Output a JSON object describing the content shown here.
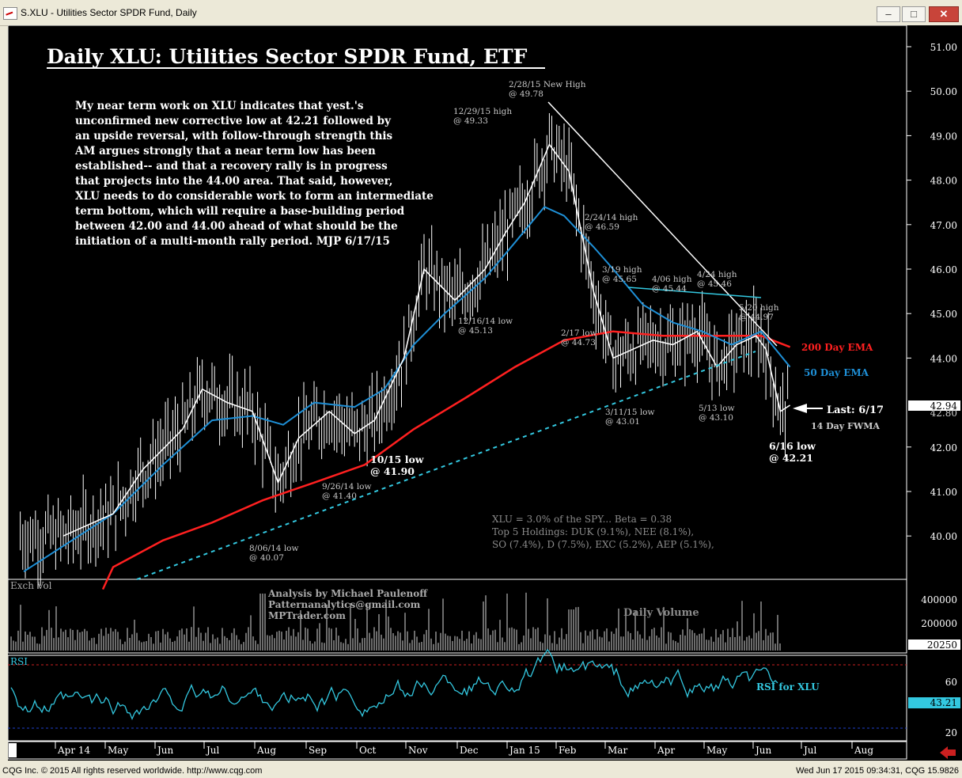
{
  "window": {
    "title": "S.XLU - Utilities Sector SPDR Fund, Daily",
    "minimize_icon": "minimize-icon",
    "restore_icon": "restore-icon",
    "close_icon": "close-icon",
    "minimize_label": "–",
    "restore_label": "□",
    "close_label": "✕"
  },
  "status": {
    "left": "CQG Inc. © 2015 All rights reserved worldwide. http://www.cqg.com",
    "right": "Wed Jun 17 2015 09:34:31, CQG 15.9826"
  },
  "chart": {
    "headline": "Daily XLU:  Utilities Sector SPDR Fund, ETF",
    "commentary": [
      "My near term work on XLU indicates that yest.'s",
      "unconfirmed new corrective low at 42.21 followed by",
      "an upside reversal, with follow-through strength this",
      "AM argues strongly that a near term low has been",
      "established-- and that a recovery rally is in progress",
      "that projects into the 44.00 area. That said, however,",
      "XLU needs to do considerable work to form an intermediate",
      "term bottom, which will require a base-building period",
      "between 42.00 and 44.00 ahead of what should be the",
      "initiation of a multi-month rally period.  MJP 6/17/15"
    ],
    "annotations": [
      {
        "id": "a1",
        "text": [
          "2/28/15 New High",
          "@ 49.78"
        ]
      },
      {
        "id": "a2",
        "text": [
          "12/29/15 high",
          "@ 49.33"
        ]
      },
      {
        "id": "a3",
        "text": [
          "2/24/14 high",
          "@ 46.59"
        ]
      },
      {
        "id": "a4",
        "text": [
          "3/19 high",
          "@ 45.65"
        ]
      },
      {
        "id": "a5",
        "text": [
          "4/06 high",
          "@ 45.44"
        ]
      },
      {
        "id": "a6",
        "text": [
          "4/24 high",
          "@ 45.46"
        ]
      },
      {
        "id": "a7",
        "text": [
          "5/20 high",
          "@ 44.97"
        ]
      },
      {
        "id": "a8",
        "text": [
          "12/16/14 low",
          "@ 45.13"
        ]
      },
      {
        "id": "a9",
        "text": [
          "2/17 low",
          "@ 44.73"
        ]
      },
      {
        "id": "a10",
        "text": [
          "3/11/15 low",
          "@ 43.01"
        ]
      },
      {
        "id": "a11",
        "text": [
          "5/13 low",
          "@ 43.10"
        ]
      },
      {
        "id": "a12",
        "text": [
          "10/15 low",
          "@ 41.90"
        ]
      },
      {
        "id": "a13",
        "text": [
          "9/26/14 low",
          "@ 41.40"
        ]
      },
      {
        "id": "a14",
        "text": [
          "8/06/14 low",
          "@ 40.07"
        ]
      },
      {
        "id": "a15",
        "text": [
          "6/16 low",
          "@ 42.21"
        ]
      }
    ],
    "legend_200": "200 Day EMA",
    "legend_50": "50 Day EMA",
    "last_label": "Last: 6/17",
    "fwma_label": "14 Day FWMA",
    "stats_lines": [
      "XLU = 3.0% of the SPY... Beta = 0.38",
      "Top 5 Holdings: DUK (9.1%), NEE (8.1%),",
      "SO (7.4%), D (7.5%), EXC (5.2%), AEP (5.1%),"
    ],
    "price_axis": [
      "51.00",
      "50.00",
      "49.00",
      "48.00",
      "47.00",
      "46.00",
      "45.00",
      "44.00",
      "43.00",
      "42.00",
      "41.00",
      "40.00"
    ],
    "last_price": "42.94",
    "prev_price": "42.80",
    "volume_label": "Exch Vol",
    "analyst_lines": [
      "Analysis by Michael Paulenoff",
      "Patternanalytics@gmail.com",
      "MPTrader.com"
    ],
    "daily_volume_label": "Daily Volume",
    "volume_axis": [
      "400000",
      "200000"
    ],
    "volume_last": "20250",
    "rsi_label": "RSI",
    "rsi_title": "RSI for  XLU",
    "rsi_axis": [
      "60",
      "20"
    ],
    "rsi_last": "43.21",
    "months": [
      "Apr 14",
      "May",
      "Jun",
      "Jul",
      "Aug",
      "Sep",
      "Oct",
      "Nov",
      "Dec",
      "Jan 15",
      "Feb",
      "Mar",
      "Apr",
      "May",
      "Jun",
      "Jul",
      "Aug"
    ],
    "colors": {
      "price": "#ffffff",
      "ema50": "#1e8fd6",
      "ema200": "#ff2020",
      "trend_up": "#33c8e0",
      "rsi": "#33c8e0",
      "annotation": "#c8c8c8",
      "volume": "#9a9a9a"
    }
  },
  "chart_data": {
    "type": "line",
    "title": "Daily XLU:  Utilities Sector SPDR Fund, ETF",
    "ylim": [
      39.0,
      51.0
    ],
    "ylabel": "",
    "xlabel": "",
    "x_ticks": [
      "Apr 14",
      "May",
      "Jun",
      "Jul",
      "Aug",
      "Sep",
      "Oct",
      "Nov",
      "Dec",
      "Jan 15",
      "Feb",
      "Mar",
      "Apr",
      "May",
      "Jun",
      "Jul",
      "Aug"
    ],
    "series": [
      {
        "name": "14 Day FWMA",
        "values": [
          [
            0,
            40.0
          ],
          [
            1,
            40.5
          ],
          [
            1.6,
            41.5
          ],
          [
            2.4,
            42.4
          ],
          [
            2.8,
            43.3
          ],
          [
            3.3,
            43.0
          ],
          [
            3.8,
            42.8
          ],
          [
            4.3,
            41.2
          ],
          [
            4.7,
            42.2
          ],
          [
            5.3,
            42.8
          ],
          [
            5.8,
            42.3
          ],
          [
            6.2,
            42.6
          ],
          [
            6.8,
            44.0
          ],
          [
            7.2,
            46.0
          ],
          [
            7.8,
            45.3
          ],
          [
            8.4,
            46.0
          ],
          [
            8.8,
            46.8
          ],
          [
            9.2,
            47.5
          ],
          [
            9.7,
            48.8
          ],
          [
            10.1,
            48.2
          ],
          [
            10.6,
            45.5
          ],
          [
            11.0,
            44.0
          ],
          [
            11.4,
            44.2
          ],
          [
            11.8,
            44.4
          ],
          [
            12.2,
            44.3
          ],
          [
            12.7,
            44.6
          ],
          [
            13.1,
            43.8
          ],
          [
            13.5,
            44.3
          ],
          [
            13.9,
            44.5
          ],
          [
            14.1,
            44.2
          ],
          [
            14.4,
            42.8
          ],
          [
            14.6,
            42.94
          ]
        ]
      },
      {
        "name": "50 Day EMA",
        "values": [
          [
            0,
            39.2
          ],
          [
            1,
            40.5
          ],
          [
            2,
            41.6
          ],
          [
            3,
            42.6
          ],
          [
            3.8,
            42.7
          ],
          [
            4.4,
            42.5
          ],
          [
            5,
            43.0
          ],
          [
            5.8,
            42.9
          ],
          [
            6.4,
            43.3
          ],
          [
            7,
            44.3
          ],
          [
            7.6,
            45.0
          ],
          [
            8.4,
            45.8
          ],
          [
            9,
            46.6
          ],
          [
            9.6,
            47.4
          ],
          [
            10,
            47.2
          ],
          [
            10.6,
            46.5
          ],
          [
            11,
            46.0
          ],
          [
            11.6,
            45.2
          ],
          [
            12.2,
            44.8
          ],
          [
            12.8,
            44.6
          ],
          [
            13.4,
            44.3
          ],
          [
            14,
            44.6
          ],
          [
            14.6,
            43.8
          ]
        ]
      },
      {
        "name": "200 Day EMA",
        "values": [
          [
            0,
            38.8
          ],
          [
            1,
            39.3
          ],
          [
            2,
            39.9
          ],
          [
            3,
            40.3
          ],
          [
            4,
            40.8
          ],
          [
            5,
            41.2
          ],
          [
            6,
            41.6
          ],
          [
            7,
            42.4
          ],
          [
            8,
            43.1
          ],
          [
            9,
            43.8
          ],
          [
            10,
            44.4
          ],
          [
            11,
            44.6
          ],
          [
            12,
            44.5
          ],
          [
            13,
            44.5
          ],
          [
            14,
            44.5
          ],
          [
            14.6,
            44.25
          ]
        ]
      }
    ],
    "reference_points": [
      {
        "label": "2/28/15 New High",
        "value": 49.78
      },
      {
        "label": "12/29/15 high",
        "value": 49.33
      },
      {
        "label": "2/24/14 high",
        "value": 46.59
      },
      {
        "label": "3/19 high",
        "value": 45.65
      },
      {
        "label": "4/06 high",
        "value": 45.44
      },
      {
        "label": "4/24 high",
        "value": 45.46
      },
      {
        "label": "5/20 high",
        "value": 44.97
      },
      {
        "label": "12/16/14 low",
        "value": 45.13
      },
      {
        "label": "2/17 low",
        "value": 44.73
      },
      {
        "label": "3/11/15 low",
        "value": 43.01
      },
      {
        "label": "5/13 low",
        "value": 43.1
      },
      {
        "label": "10/15 low",
        "value": 41.9
      },
      {
        "label": "9/26/14 low",
        "value": 41.4
      },
      {
        "label": "8/06/14 low",
        "value": 40.07
      },
      {
        "label": "6/16 low",
        "value": 42.21
      }
    ],
    "last_value": 42.94,
    "rsi_last": 43.21,
    "volume_last": 20250,
    "grid": false,
    "legend": "right"
  }
}
